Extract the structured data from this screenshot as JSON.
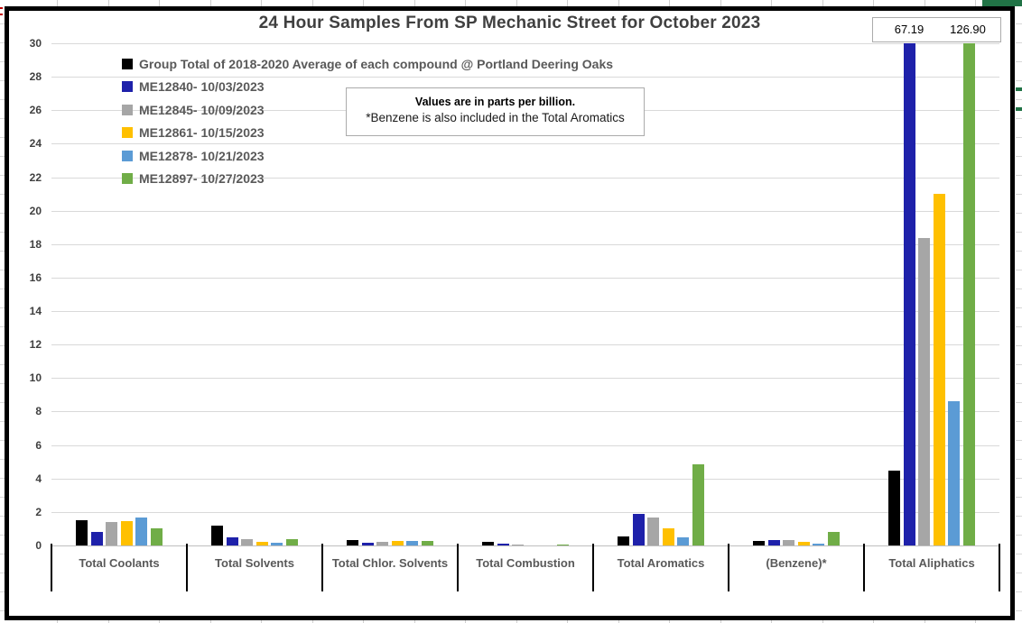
{
  "app": {
    "background": "excel-worksheet-edges"
  },
  "chart": {
    "overflow_labels": [
      "67.19",
      "126.90"
    ],
    "note_line1": "Values are in parts per billion.",
    "note_line2": "*Benzene is also included in the Total Aromatics"
  },
  "chart_data": {
    "type": "bar",
    "title": "24 Hour Samples From SP Mechanic Street for October 2023",
    "categories": [
      "Total Coolants",
      "Total Solvents",
      "Total Chlor. Solvents",
      "Total Combustion",
      "Total Aromatics",
      "(Benzene)*",
      "Total Aliphatics"
    ],
    "series": [
      {
        "name": "Group Total of 2018-2020 Average of each compound @ Portland Deering Oaks",
        "color": "#000000",
        "values": [
          1.5,
          1.2,
          0.3,
          0.22,
          0.55,
          0.25,
          4.45
        ]
      },
      {
        "name": "ME12840- 10/03/2023",
        "color": "#1e21aa",
        "values": [
          0.8,
          0.5,
          0.17,
          0.1,
          1.9,
          0.35,
          67.19
        ]
      },
      {
        "name": "ME12845- 10/09/2023",
        "color": "#a6a6a6",
        "values": [
          1.4,
          0.38,
          0.22,
          0.07,
          1.65,
          0.33,
          18.35
        ]
      },
      {
        "name": "ME12861- 10/15/2023",
        "color": "#ffc000",
        "values": [
          1.45,
          0.2,
          0.25,
          0,
          1.0,
          0.2,
          21.0
        ]
      },
      {
        "name": "ME12878- 10/21/2023",
        "color": "#5b9bd5",
        "values": [
          1.65,
          0.15,
          0.27,
          0,
          0.5,
          0.1,
          8.6
        ]
      },
      {
        "name": "ME12897- 10/27/2023",
        "color": "#70ad47",
        "values": [
          1.05,
          0.4,
          0.26,
          0.08,
          4.85,
          0.8,
          126.9
        ]
      }
    ],
    "ylim": [
      0,
      30
    ],
    "ytick_step": 2,
    "xlabel": "",
    "ylabel": "",
    "grid": true,
    "legend_position": "inside-top-left",
    "clipped_bars": [
      {
        "series": "ME12840- 10/03/2023",
        "category": "Total Aliphatics",
        "value": 67.19
      },
      {
        "series": "ME12897- 10/27/2023",
        "category": "Total Aliphatics",
        "value": 126.9
      }
    ]
  }
}
